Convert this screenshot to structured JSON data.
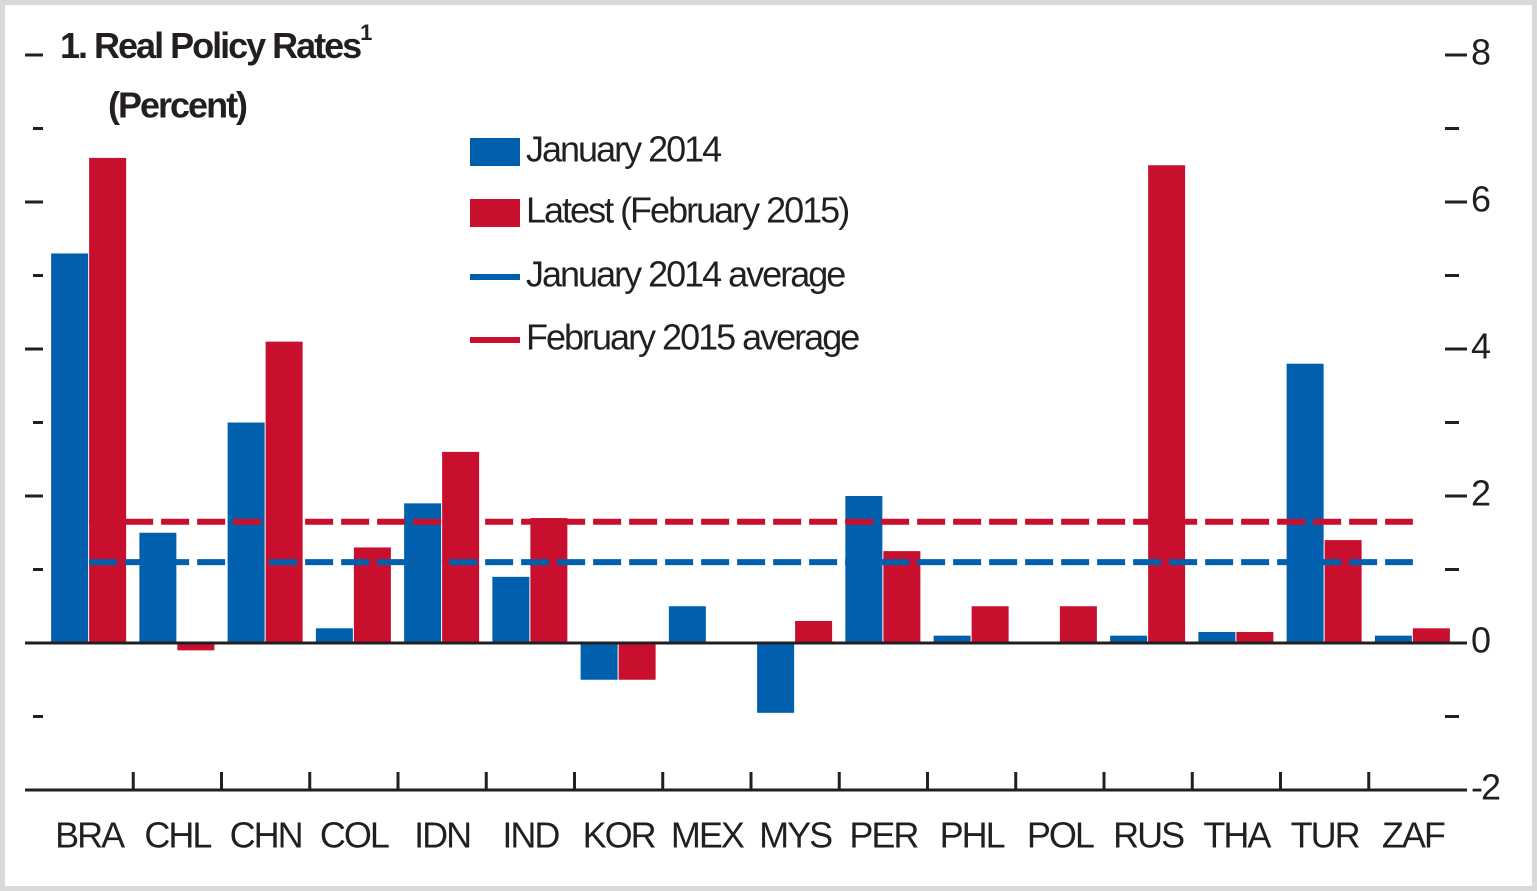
{
  "chart_data": {
    "type": "bar",
    "title": "1. Real Policy Rates",
    "title_superscript": "1",
    "subtitle": "(Percent)",
    "categories": [
      "BRA",
      "CHL",
      "CHN",
      "COL",
      "IDN",
      "IND",
      "KOR",
      "MEX",
      "MYS",
      "PER",
      "PHL",
      "POL",
      "RUS",
      "THA",
      "TUR",
      "ZAF"
    ],
    "series": [
      {
        "name": "January 2014",
        "color": "#0060ae",
        "values": [
          5.3,
          1.5,
          3.0,
          0.2,
          1.9,
          0.9,
          -0.5,
          0.5,
          -0.95,
          2.0,
          0.1,
          null,
          0.1,
          0.15,
          3.8,
          0.1
        ]
      },
      {
        "name": "Latest (February 2015)",
        "color": "#c8102e",
        "values": [
          6.6,
          -0.1,
          4.1,
          1.3,
          2.6,
          1.7,
          -0.5,
          null,
          0.3,
          1.25,
          0.5,
          0.5,
          6.5,
          0.15,
          1.4,
          0.2
        ]
      }
    ],
    "average_lines": [
      {
        "name": "January 2014 average",
        "color": "#0060ae",
        "value": 1.1
      },
      {
        "name": "February 2015 average",
        "color": "#c8102e",
        "value": 1.65
      }
    ],
    "ylim": [
      -2,
      8
    ],
    "yticks": [
      -2,
      0,
      2,
      4,
      6,
      8
    ],
    "minor_yticks": [
      -1,
      1,
      3,
      5,
      7
    ]
  }
}
